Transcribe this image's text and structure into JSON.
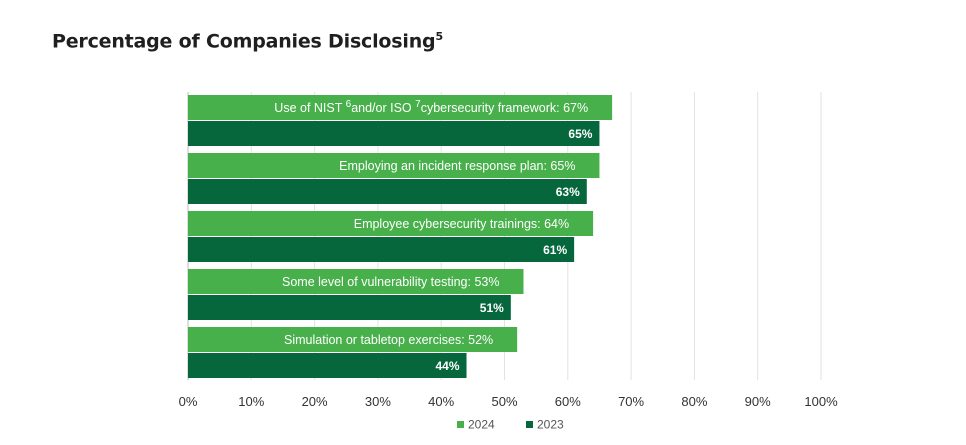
{
  "title": "Percentage of Companies Disclosing",
  "title_sup": "5",
  "chart_data": {
    "type": "bar",
    "orientation": "horizontal",
    "title": "Percentage of Companies Disclosing",
    "xlim": [
      0,
      100
    ],
    "xticks": [
      "0%",
      "10%",
      "20%",
      "30%",
      "40%",
      "50%",
      "60%",
      "70%",
      "80%",
      "90%",
      "100%"
    ],
    "grid": true,
    "legend_position": "bottom-center",
    "categories": [
      {
        "parts": [
          {
            "text": "Use of NIST "
          },
          {
            "text": "6",
            "sup": true
          },
          {
            "text": "and/or ISO "
          },
          {
            "text": "7",
            "sup": true
          },
          {
            "text": "cybersecurity framework: 67%"
          }
        ]
      },
      {
        "parts": [
          {
            "text": "Employing an incident response plan: 65%"
          }
        ]
      },
      {
        "parts": [
          {
            "text": "Employee cybersecurity trainings: 64%"
          }
        ]
      },
      {
        "parts": [
          {
            "text": "Some level of vulnerability testing: 53%"
          }
        ]
      },
      {
        "parts": [
          {
            "text": "Simulation or tabletop exercises: 52%"
          }
        ]
      }
    ],
    "series": [
      {
        "name": "2024",
        "color": "#47b04b",
        "values": [
          67,
          65,
          64,
          53,
          52
        ]
      },
      {
        "name": "2023",
        "color": "#05673b",
        "values": [
          65,
          63,
          61,
          51,
          44
        ],
        "labels": [
          "65%",
          "63%",
          "61%",
          "51%",
          "44%"
        ]
      }
    ]
  }
}
